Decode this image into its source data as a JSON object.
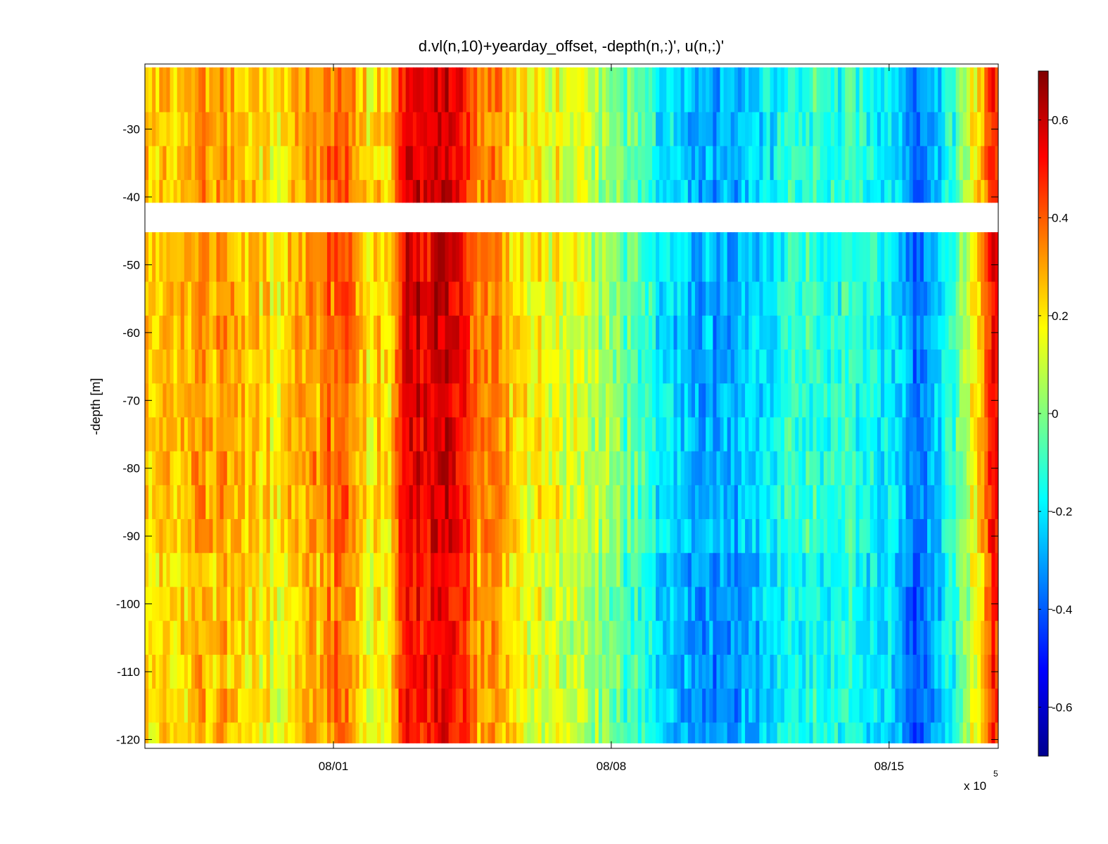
{
  "chart_data": {
    "type": "heatmap",
    "title": "d.vl(n,10)+yearday_offset, -depth(n,:)', u(n,:)'",
    "xlabel": "",
    "ylabel": "-depth [m]",
    "x_exponent_label": "x 10",
    "x_exponent_power": "5",
    "x_ticks": [
      "08/01",
      "08/08",
      "08/15"
    ],
    "x_tick_days": [
      4.75,
      11.75,
      18.75
    ],
    "xlim_days": [
      0,
      21.5
    ],
    "y_ticks": [
      "-30",
      "-40",
      "-50",
      "-60",
      "-70",
      "-80",
      "-90",
      "-100",
      "-110",
      "-120"
    ],
    "y_tick_values": [
      -30,
      -40,
      -50,
      -60,
      -70,
      -80,
      -90,
      -100,
      -110,
      -120
    ],
    "ylim": [
      -121.3,
      -20.4
    ],
    "gap_depth_range": [
      -45.2,
      -40.8
    ],
    "data_depth_range": [
      -120.5,
      -20.9
    ],
    "depth_bins": [
      -25,
      -30,
      -35,
      -40,
      -50,
      -55,
      -60,
      -65,
      -70,
      -75,
      -80,
      -85,
      -90,
      -95,
      -100,
      -105,
      -110,
      -115,
      -120
    ],
    "colorbar": {
      "clim": [
        -0.7,
        0.7
      ],
      "ticks": [
        "0.6",
        "0.4",
        "0.2",
        "0",
        "-0.2",
        "-0.4",
        "-0.6"
      ],
      "tick_values": [
        0.6,
        0.4,
        0.2,
        0,
        -0.2,
        -0.4,
        -0.6
      ],
      "colormap": "jet"
    },
    "u_profile_keyframes": [
      {
        "day": 0.0,
        "u": 0.25
      },
      {
        "day": 1.0,
        "u": 0.28
      },
      {
        "day": 2.0,
        "u": 0.3
      },
      {
        "day": 3.0,
        "u": 0.2
      },
      {
        "day": 4.0,
        "u": 0.25
      },
      {
        "day": 4.9,
        "u": 0.42
      },
      {
        "day": 5.5,
        "u": 0.22
      },
      {
        "day": 6.2,
        "u": 0.2
      },
      {
        "day": 6.6,
        "u": 0.58
      },
      {
        "day": 7.2,
        "u": 0.55
      },
      {
        "day": 7.8,
        "u": 0.6
      },
      {
        "day": 8.3,
        "u": 0.38
      },
      {
        "day": 9.0,
        "u": 0.3
      },
      {
        "day": 9.5,
        "u": 0.2
      },
      {
        "day": 10.5,
        "u": 0.15
      },
      {
        "day": 11.5,
        "u": 0.05
      },
      {
        "day": 12.5,
        "u": -0.1
      },
      {
        "day": 13.4,
        "u": -0.25
      },
      {
        "day": 14.4,
        "u": -0.3
      },
      {
        "day": 15.3,
        "u": -0.22
      },
      {
        "day": 16.2,
        "u": -0.15
      },
      {
        "day": 17.0,
        "u": -0.1
      },
      {
        "day": 18.0,
        "u": -0.12
      },
      {
        "day": 18.8,
        "u": -0.22
      },
      {
        "day": 19.6,
        "u": -0.38
      },
      {
        "day": 20.4,
        "u": -0.1
      },
      {
        "day": 20.9,
        "u": 0.2
      },
      {
        "day": 21.4,
        "u": 0.5
      }
    ]
  }
}
